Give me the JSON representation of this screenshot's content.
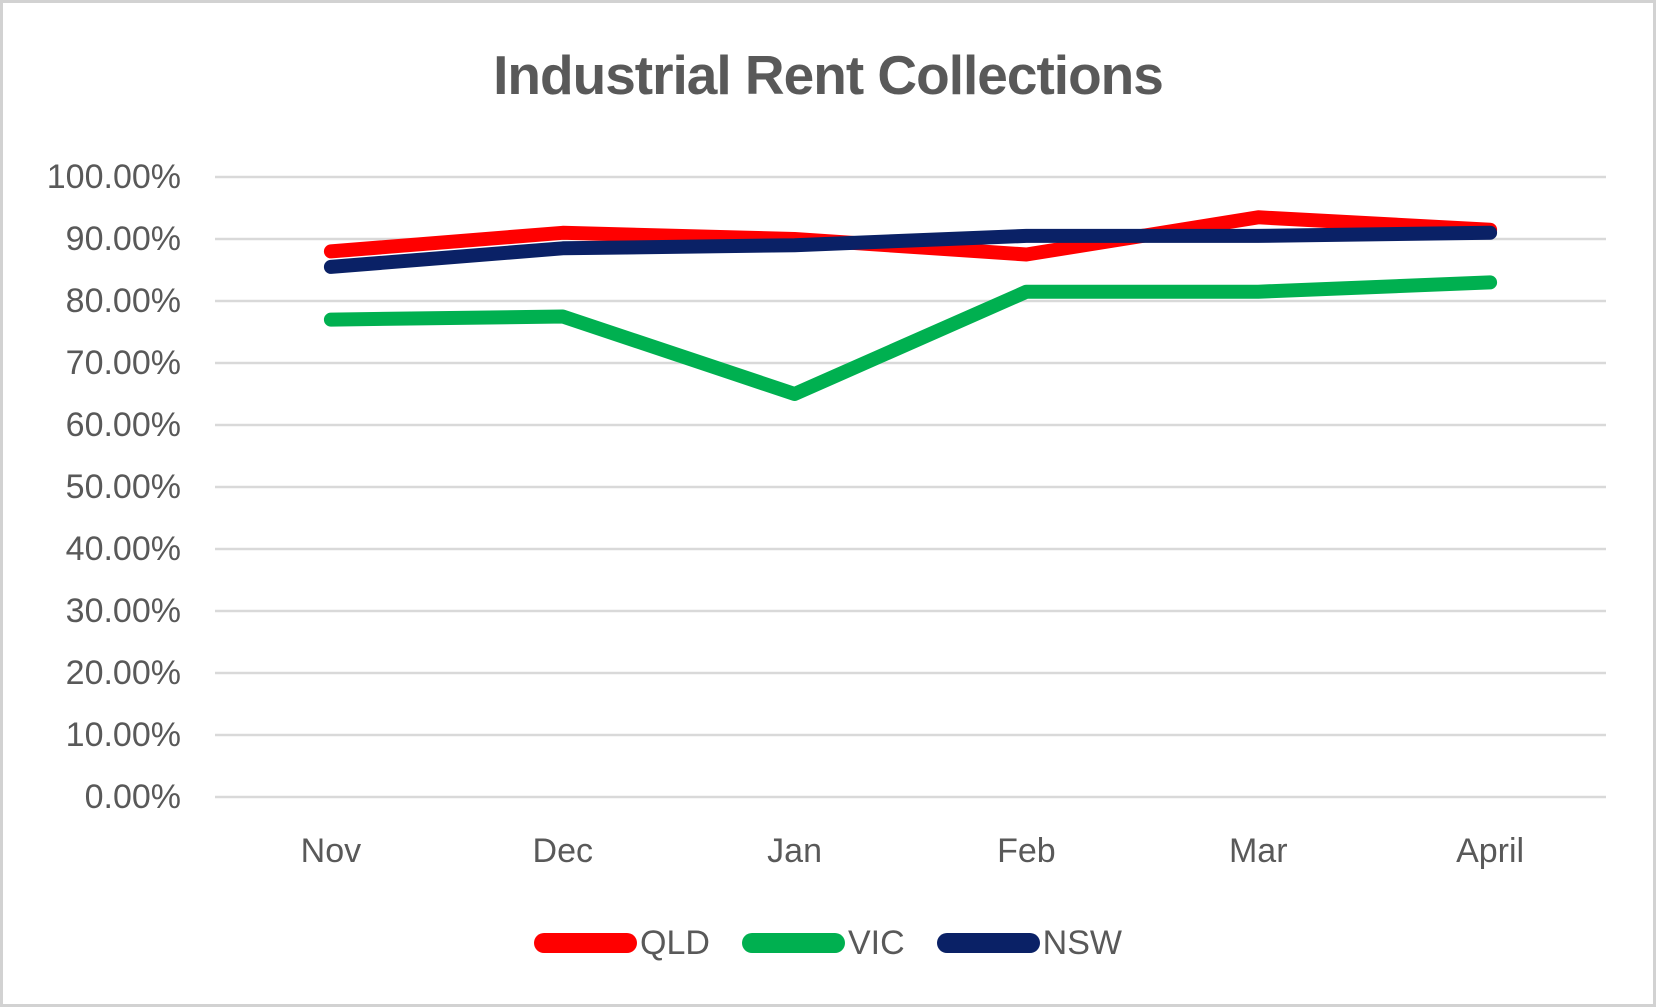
{
  "window": {
    "background_color": "#FFFFFF",
    "border_color": "#D2D2D2"
  },
  "chart_data": {
    "type": "line",
    "title": "Industrial Rent Collections",
    "title_color": "#595959",
    "categories": [
      "Nov",
      "Dec",
      "Jan",
      "Feb",
      "Mar",
      "April"
    ],
    "series": [
      {
        "name": "QLD",
        "color": "#FF0000",
        "values": [
          88,
          91,
          90,
          87.5,
          93.5,
          91.5
        ]
      },
      {
        "name": "VIC",
        "color": "#00B050",
        "values": [
          77,
          77.5,
          65,
          81.5,
          81.5,
          83
        ]
      },
      {
        "name": "NSW",
        "color": "#0A2166",
        "values": [
          85.5,
          88.5,
          89,
          90.5,
          90.5,
          91
        ]
      }
    ],
    "y_axis": {
      "min": 0,
      "max": 100,
      "step": 10,
      "tick_labels": [
        "100.00%",
        "90.00%",
        "80.00%",
        "70.00%",
        "60.00%",
        "50.00%",
        "40.00%",
        "30.00%",
        "20.00%",
        "10.00%",
        "0.00%"
      ],
      "label_color": "#595959"
    },
    "x_axis": {
      "label_color": "#595959"
    },
    "grid": {
      "show": true,
      "color": "#D9D9D9"
    },
    "legend": {
      "position": "bottom",
      "text_color": "#595959"
    }
  }
}
